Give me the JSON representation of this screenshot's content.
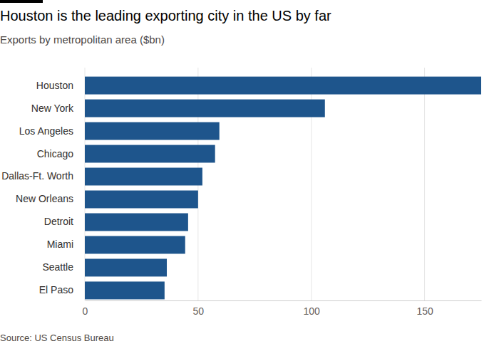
{
  "chart_data": {
    "type": "bar",
    "orientation": "horizontal",
    "title": "Houston is the leading exporting city in the US by far",
    "subtitle": "Exports by metropolitan area ($bn)",
    "source": "Source: US Census Bureau",
    "categories": [
      "Houston",
      "New York",
      "Los Angeles",
      "Chicago",
      "Dallas-Ft. Worth",
      "New Orleans",
      "Detroit",
      "Miami",
      "Seattle",
      "El Paso"
    ],
    "values": [
      175,
      106,
      59.4,
      57.5,
      51.9,
      50,
      45.6,
      44.3,
      36.2,
      35.2
    ],
    "color": "#1e558c",
    "xlim": [
      0,
      175
    ],
    "xticks": [
      0,
      50,
      100,
      150
    ],
    "grid": true
  }
}
